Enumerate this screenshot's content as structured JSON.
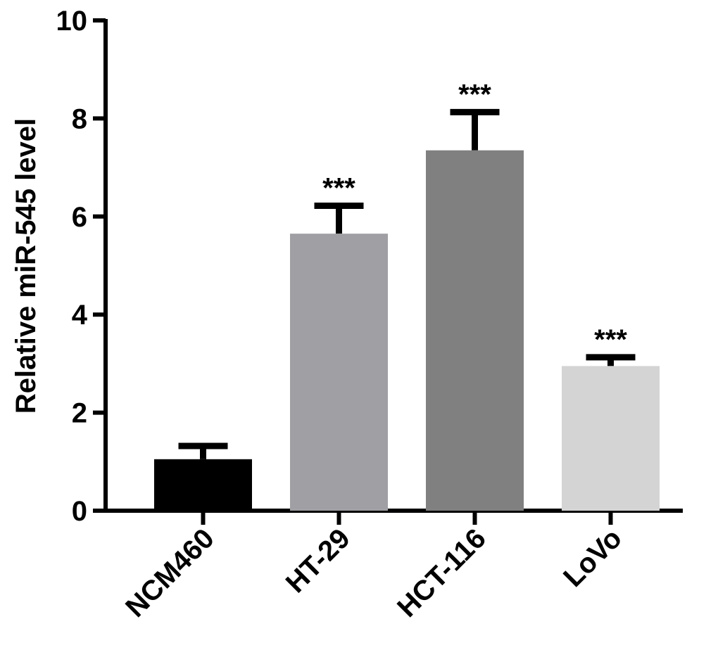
{
  "chart_data": {
    "type": "bar",
    "categories": [
      "NCM460",
      "HT-29",
      "HCT-116",
      "LoVo"
    ],
    "values": [
      1.05,
      5.65,
      7.35,
      2.95
    ],
    "errors": [
      0.27,
      0.57,
      0.78,
      0.18
    ],
    "significance": [
      "",
      "***",
      "***",
      "***"
    ],
    "colors": [
      "#000000",
      "#a0a0a4",
      "#808080",
      "#d4d4d4"
    ],
    "title": "",
    "xlabel": "",
    "ylabel": "Relative miR-545 level",
    "ylim": [
      0,
      10
    ],
    "yticks": [
      "0",
      "2",
      "4",
      "6",
      "8",
      "10"
    ],
    "grid": false,
    "legend": "none"
  }
}
